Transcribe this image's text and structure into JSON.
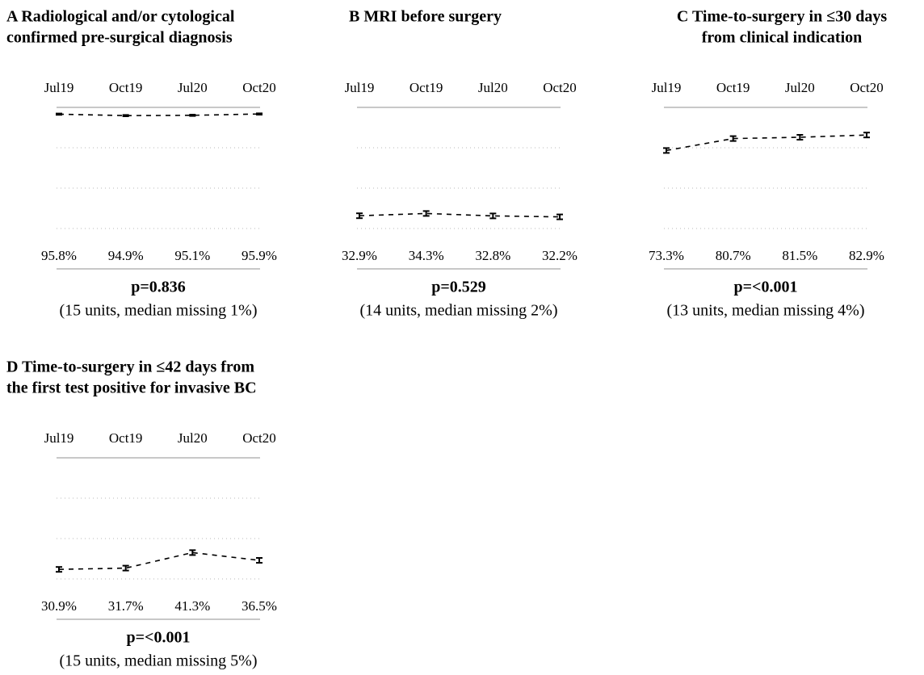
{
  "chart_data": [
    {
      "type": "line",
      "title": [
        "A  Radiological and/or cytological",
        "confirmed pre-surgical diagnosis"
      ],
      "title_align": "left",
      "categories": [
        "Jul19",
        "Oct19",
        "Jul20",
        "Oct20"
      ],
      "values": [
        95.8,
        94.9,
        95.1,
        95.9
      ],
      "value_labels": [
        "95.8%",
        "94.9%",
        "95.1%",
        "95.9%"
      ],
      "errors": [
        0.4,
        0.4,
        0.4,
        0.4
      ],
      "ylim": [
        25,
        100
      ],
      "yticks": [
        25,
        50,
        75,
        100
      ],
      "grid": true,
      "color": "#000000",
      "p": "p=0.836",
      "note": "(15 units, median missing 1%)"
    },
    {
      "type": "line",
      "title": [
        "B  MRI before surgery"
      ],
      "title_align": "left",
      "categories": [
        "Jul19",
        "Oct19",
        "Jul20",
        "Oct20"
      ],
      "values": [
        32.9,
        34.3,
        32.8,
        32.2
      ],
      "value_labels": [
        "32.9%",
        "34.3%",
        "32.8%",
        "32.2%"
      ],
      "errors": [
        1.5,
        1.5,
        1.5,
        1.5
      ],
      "ylim": [
        25,
        100
      ],
      "yticks": [
        25,
        50,
        75,
        100
      ],
      "grid": true,
      "color": "#000000",
      "p": "p=0.529",
      "note": "(14 units, median missing 2%)"
    },
    {
      "type": "line",
      "title": [
        "C  Time-to-surgery in ≤30 days",
        "from clinical indication"
      ],
      "title_align": "center",
      "categories": [
        "Jul19",
        "Oct19",
        "Jul20",
        "Oct20"
      ],
      "values": [
        73.3,
        80.7,
        81.5,
        82.9
      ],
      "value_labels": [
        "73.3%",
        "80.7%",
        "81.5%",
        "82.9%"
      ],
      "errors": [
        1.5,
        1.5,
        1.5,
        1.5
      ],
      "ylim": [
        25,
        100
      ],
      "yticks": [
        25,
        50,
        75,
        100
      ],
      "grid": true,
      "color": "#000000",
      "p": "p=<0.001",
      "note": "(13 units, median missing 4%)"
    },
    {
      "type": "line",
      "title": [
        "D  Time-to-surgery in ≤42 days from",
        "the first test positive for invasive BC"
      ],
      "title_align": "left",
      "categories": [
        "Jul19",
        "Oct19",
        "Jul20",
        "Oct20"
      ],
      "values": [
        30.9,
        31.7,
        41.3,
        36.5
      ],
      "value_labels": [
        "30.9%",
        "31.7%",
        "41.3%",
        "36.5%"
      ],
      "errors": [
        1.5,
        1.5,
        1.5,
        1.5
      ],
      "ylim": [
        25,
        100
      ],
      "yticks": [
        25,
        50,
        75,
        100
      ],
      "grid": true,
      "color": "#000000",
      "p": "p=<0.001",
      "note": "(15 units, median missing 5%)"
    }
  ]
}
